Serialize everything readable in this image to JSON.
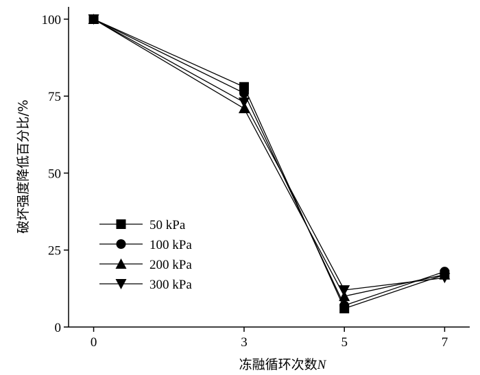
{
  "chart_data": {
    "type": "line",
    "x": [
      0,
      3,
      5,
      7
    ],
    "xlim": [
      -0.5,
      7.5
    ],
    "ylim": [
      0,
      104
    ],
    "xticks": [
      "0",
      "3",
      "5",
      "7"
    ],
    "yticks": [
      "0",
      "25",
      "50",
      "75",
      "100"
    ],
    "xlabel_main": "冻融循环次数",
    "xlabel_var": "N",
    "ylabel": "破坏强度降低百分比/%",
    "legend_position": "lower-left",
    "series": [
      {
        "name": "50 kPa",
        "marker": "square",
        "values": [
          100,
          78,
          6,
          17
        ]
      },
      {
        "name": "100 kPa",
        "marker": "circle",
        "values": [
          100,
          76,
          7,
          18
        ]
      },
      {
        "name": "200 kPa",
        "marker": "triangle-up",
        "values": [
          100,
          71,
          10,
          17
        ]
      },
      {
        "name": "300 kPa",
        "marker": "triangle-down",
        "values": [
          100,
          73,
          12,
          16
        ]
      }
    ]
  }
}
